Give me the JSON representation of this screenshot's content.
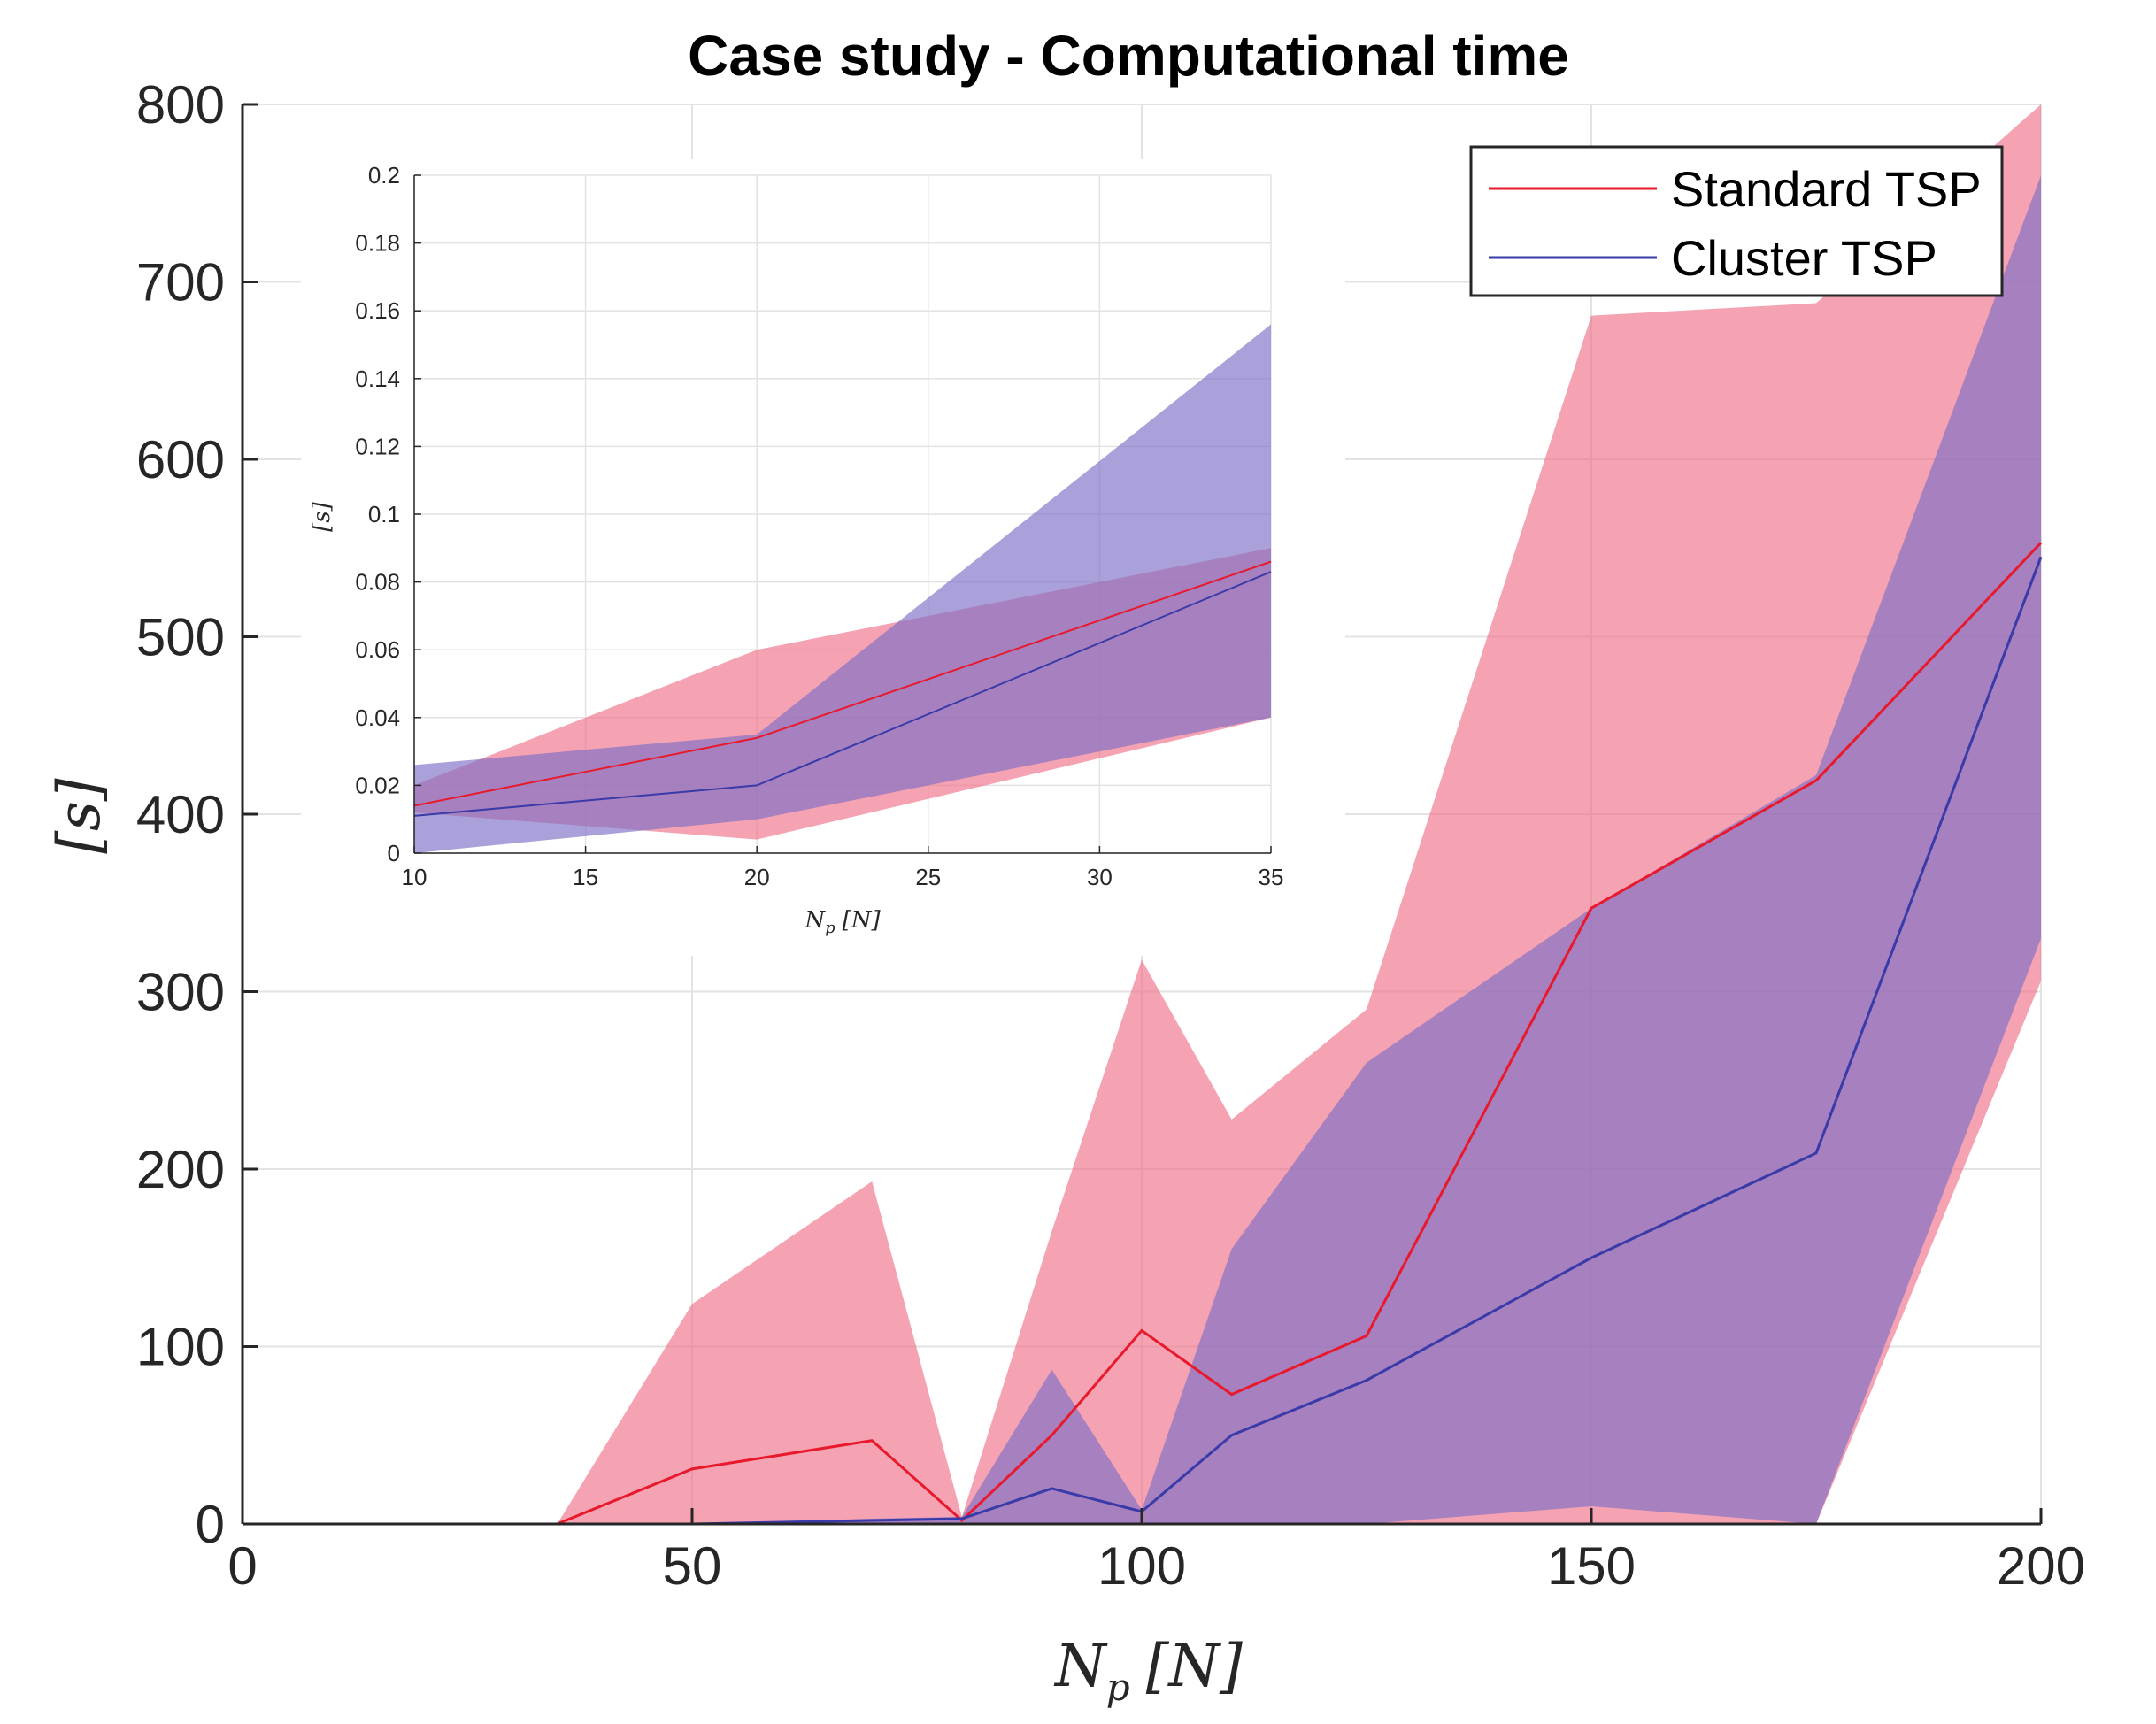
{
  "chart_data": [
    {
      "id": "main",
      "type": "area",
      "title": "Case study - Computational time",
      "xlabel": "N_p [N]",
      "xlabel_main": "N",
      "xlabel_sub": "p",
      "xlabel_bracket": "[N]",
      "ylabel": "[s]",
      "xlim": [
        0,
        200
      ],
      "ylim": [
        0,
        800
      ],
      "xticks": [
        0,
        50,
        100,
        150,
        200
      ],
      "yticks": [
        0,
        100,
        200,
        300,
        400,
        500,
        600,
        700,
        800
      ],
      "grid": true,
      "legend_position": "top-right",
      "series": [
        {
          "name": "Standard TSP",
          "line_color": "#e8192c",
          "band_color": "#f07088",
          "x": [
            10,
            20,
            25,
            30,
            35,
            50,
            70,
            80,
            90,
            100,
            110,
            125,
            150,
            175,
            200
          ],
          "mean": [
            0,
            0,
            0,
            0,
            0,
            31,
            47,
            2,
            50,
            109,
            73,
            106,
            347,
            419,
            553
          ],
          "upper": [
            0,
            0,
            0,
            0,
            0,
            124,
            193,
            4,
            165,
            318,
            228,
            290,
            681,
            688,
            800
          ],
          "lower": [
            0,
            0,
            0,
            0,
            0,
            0,
            0,
            0,
            0,
            0,
            0,
            0,
            0,
            0,
            306
          ]
        },
        {
          "name": "Cluster TSP",
          "line_color": "#3a3aa8",
          "band_color": "#7c6fc6",
          "x": [
            10,
            20,
            25,
            30,
            35,
            50,
            70,
            80,
            90,
            100,
            110,
            125,
            150,
            175,
            200
          ],
          "mean": [
            0,
            0,
            0,
            0,
            0,
            0,
            2,
            3,
            20,
            7,
            50,
            81,
            150,
            209,
            545
          ],
          "upper": [
            0,
            0,
            0,
            0,
            0,
            0,
            3,
            4,
            87,
            8,
            155,
            260,
            347,
            422,
            760
          ],
          "lower": [
            0,
            0,
            0,
            0,
            0,
            0,
            0,
            0,
            0,
            0,
            0,
            0,
            10,
            0,
            330
          ]
        }
      ]
    },
    {
      "id": "inset",
      "type": "area",
      "title": "",
      "xlabel": "N_p [N]",
      "xlabel_main": "N",
      "xlabel_sub": "p",
      "xlabel_bracket": "[N]",
      "ylabel": "[s]",
      "xlim": [
        10,
        35
      ],
      "ylim": [
        0,
        0.2
      ],
      "xticks": [
        10,
        15,
        20,
        25,
        30,
        35
      ],
      "yticks": [
        0,
        0.02,
        0.04,
        0.06,
        0.08,
        0.1,
        0.12,
        0.14,
        0.16,
        0.18,
        0.2
      ],
      "grid": true,
      "series": [
        {
          "name": "Standard TSP",
          "line_color": "#e8192c",
          "band_color": "#f07088",
          "x": [
            10,
            20,
            35
          ],
          "mean": [
            0.014,
            0.034,
            0.086
          ],
          "upper": [
            0.02,
            0.06,
            0.09
          ],
          "lower": [
            0.012,
            0.004,
            0.04
          ]
        },
        {
          "name": "Cluster TSP",
          "line_color": "#3a3aa8",
          "band_color": "#7c6fc6",
          "x": [
            10,
            20,
            35
          ],
          "mean": [
            0.011,
            0.02,
            0.083
          ],
          "upper": [
            0.026,
            0.035,
            0.156
          ],
          "lower": [
            0.0,
            0.01,
            0.04
          ]
        }
      ]
    }
  ]
}
